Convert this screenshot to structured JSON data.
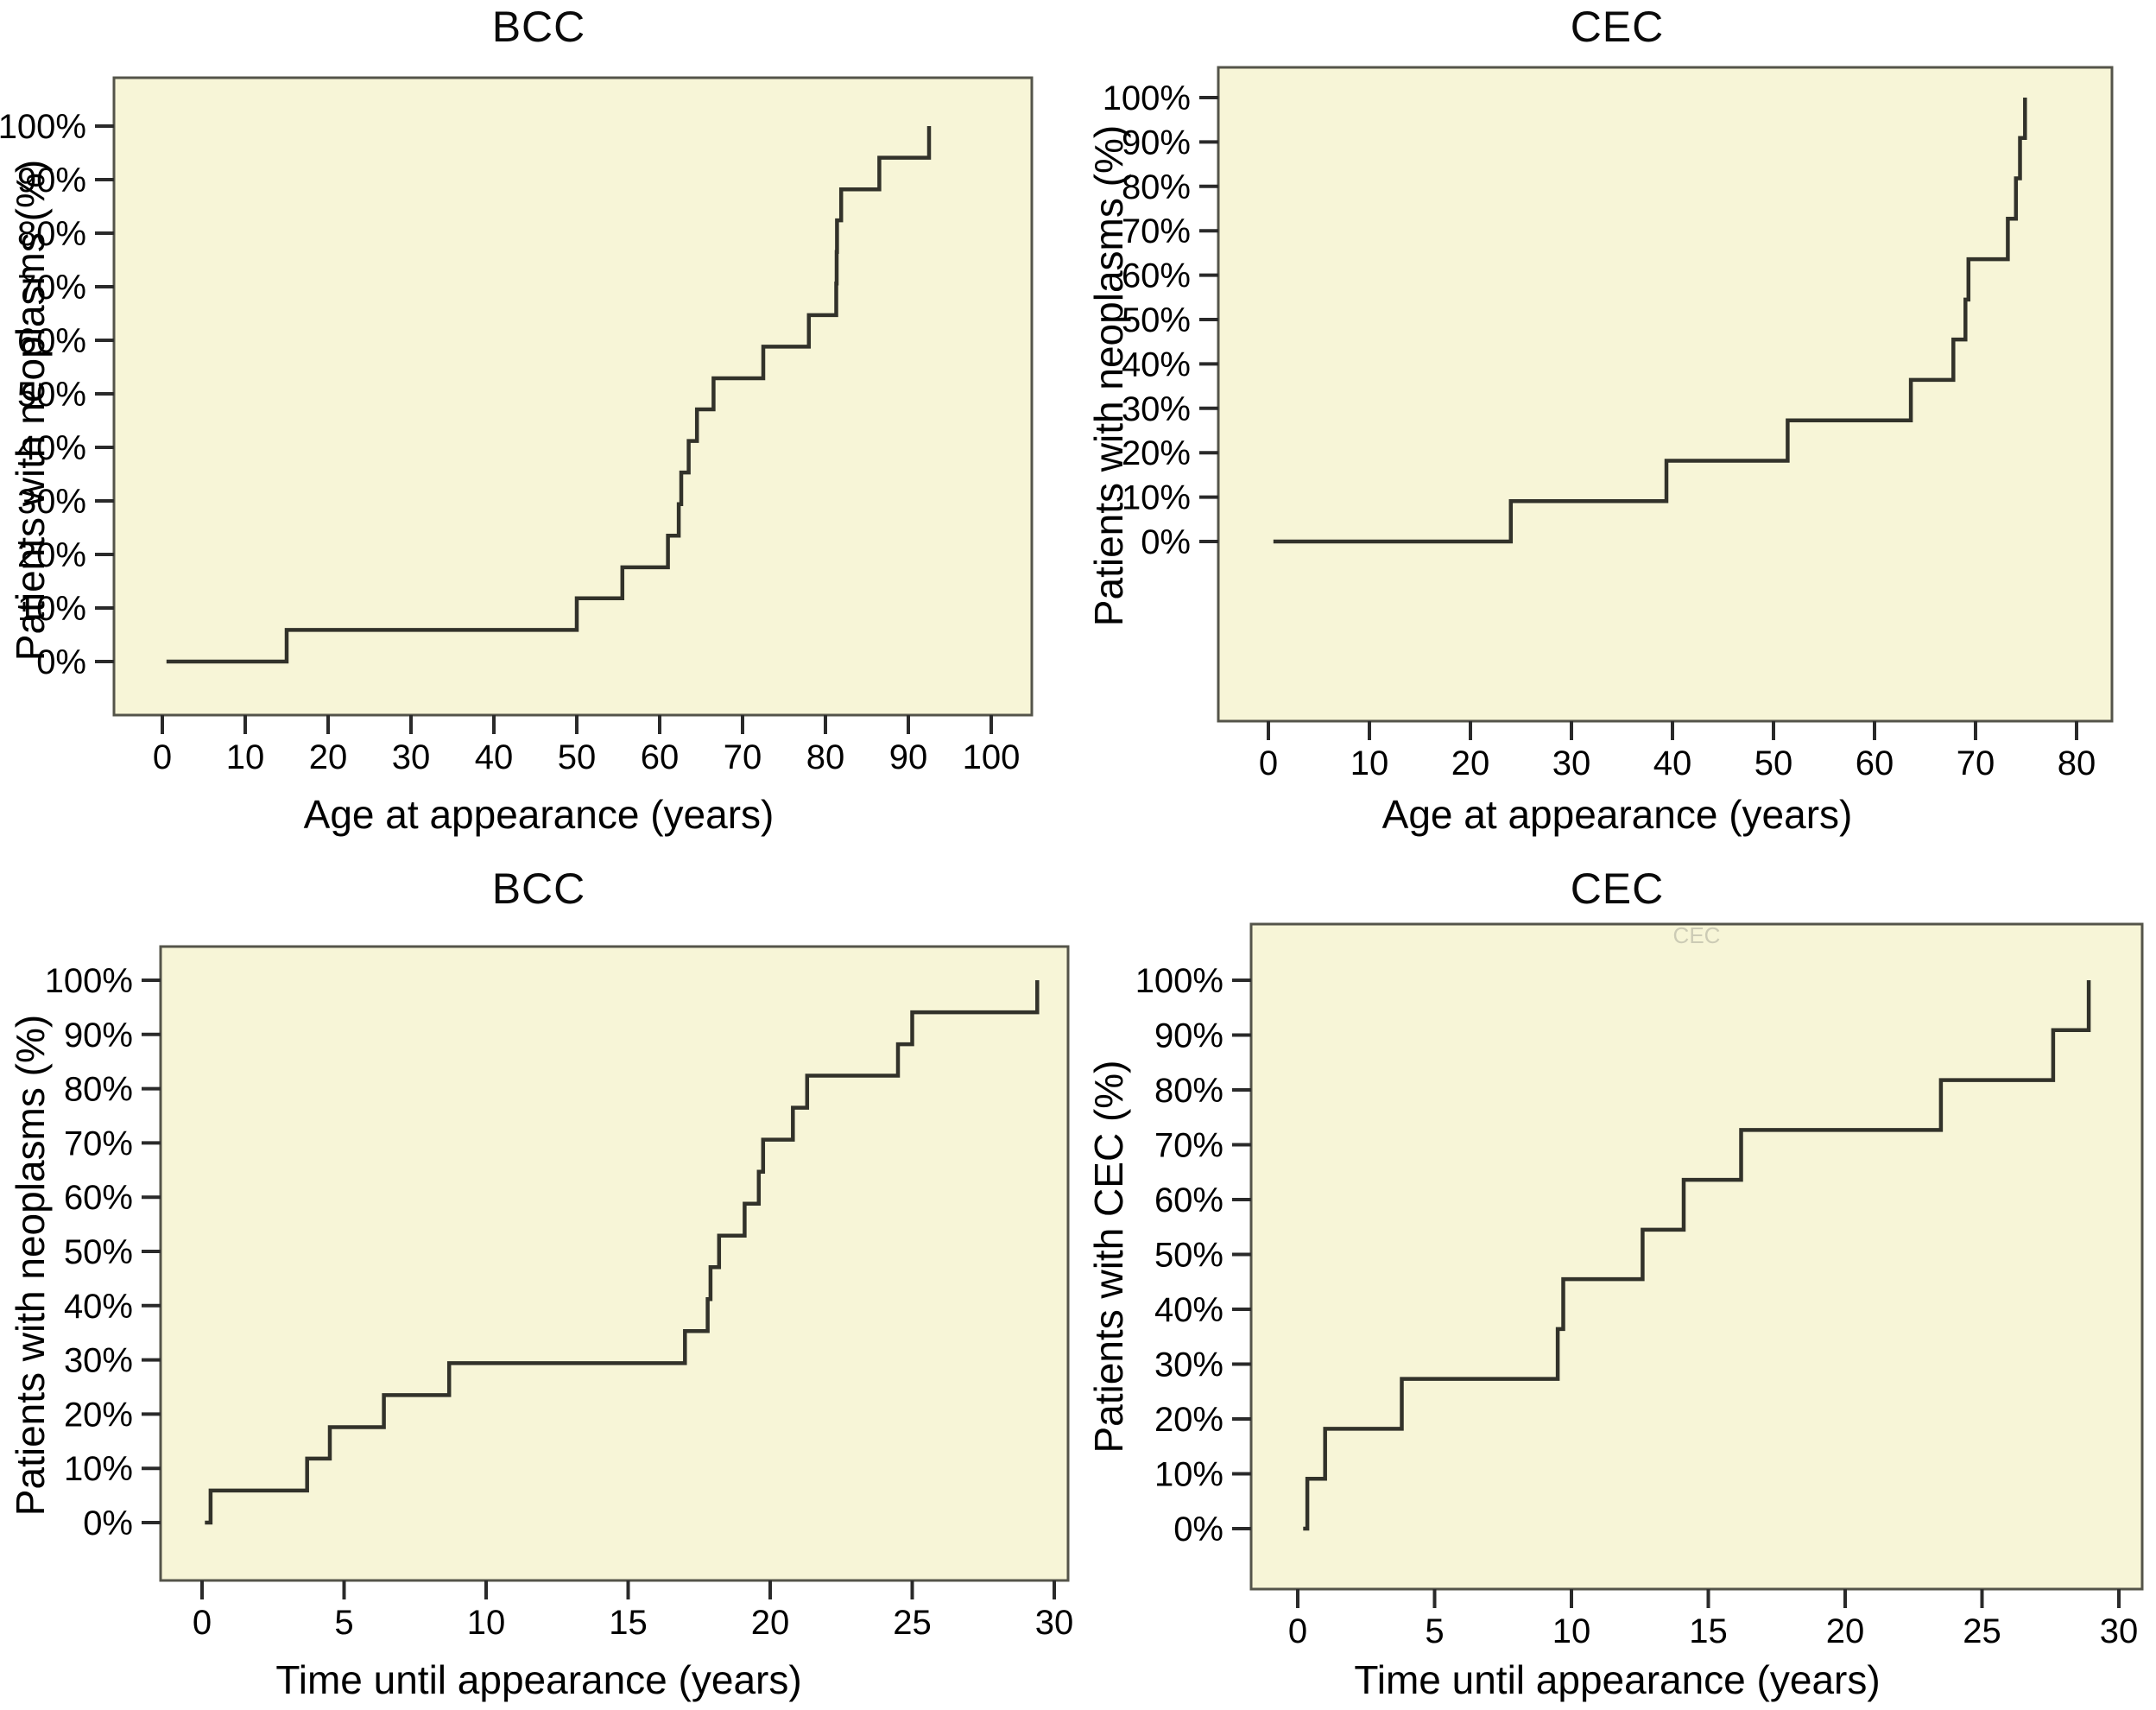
{
  "figure_title": "",
  "colors": {
    "plot_background": "#f7f5d7",
    "curve_line": "#32322a",
    "plot_border": "#54544a",
    "tick_mark": "#2a2a2a",
    "text": "#000000",
    "page_background": "#ffffff",
    "ghost_text_color": "#9a9a8e"
  },
  "chart_data": [
    {
      "id": "bcc-age",
      "type": "step",
      "title": "BCC",
      "xlabel": "Age at appearance (years)",
      "ylabel": "Patients with neoplasms (%)",
      "xlim": [
        0,
        100
      ],
      "ylim": [
        0,
        100
      ],
      "grid": false,
      "legend": null,
      "x_ticks": [
        0,
        10,
        20,
        30,
        40,
        50,
        60,
        70,
        80,
        90,
        100
      ],
      "y_ticks": [
        0,
        10,
        20,
        30,
        40,
        50,
        60,
        70,
        80,
        90,
        100
      ],
      "y_tick_suffix": "%",
      "n_events": 17,
      "start_x": 0.5,
      "steps": [
        [
          15,
          5.9
        ],
        [
          50,
          11.8
        ],
        [
          55.5,
          17.6
        ],
        [
          61,
          23.5
        ],
        [
          62.3,
          29.4
        ],
        [
          62.6,
          35.3
        ],
        [
          63.5,
          41.2
        ],
        [
          64.5,
          47.1
        ],
        [
          66.5,
          52.9
        ],
        [
          72.5,
          58.8
        ],
        [
          78,
          64.7
        ],
        [
          81.3,
          70.6
        ],
        [
          81.35,
          76.5
        ],
        [
          81.4,
          82.4
        ],
        [
          81.9,
          88.2
        ],
        [
          86.5,
          94.1
        ],
        [
          92.5,
          100
        ]
      ]
    },
    {
      "id": "cec-age",
      "type": "step",
      "title": "CEC",
      "xlabel": "Age at appearance (years)",
      "ylabel": "Patients with neoplasms (%)",
      "xlim": [
        0,
        80
      ],
      "ylim": [
        0,
        100
      ],
      "grid": false,
      "legend": null,
      "x_ticks": [
        0,
        10,
        20,
        30,
        40,
        50,
        60,
        70,
        80
      ],
      "y_ticks": [
        0,
        10,
        20,
        30,
        40,
        50,
        60,
        70,
        80,
        90,
        100
      ],
      "y_tick_suffix": "%",
      "n_events": 11,
      "start_x": 0.5,
      "steps": [
        [
          24,
          9.1
        ],
        [
          39.4,
          18.2
        ],
        [
          51.4,
          27.3
        ],
        [
          63.6,
          36.4
        ],
        [
          67.8,
          45.5
        ],
        [
          69,
          54.5
        ],
        [
          69.3,
          63.6
        ],
        [
          73.2,
          72.7
        ],
        [
          74,
          81.8
        ],
        [
          74.4,
          90.9
        ],
        [
          74.9,
          100
        ]
      ]
    },
    {
      "id": "bcc-time",
      "type": "step",
      "title": "BCC",
      "xlabel": "Time until appearance (years)",
      "ylabel": "Patients with neoplasms (%)",
      "xlim": [
        0,
        30
      ],
      "ylim": [
        0,
        100
      ],
      "grid": false,
      "legend": null,
      "x_ticks": [
        0,
        5,
        10,
        15,
        20,
        25,
        30
      ],
      "y_ticks": [
        0,
        10,
        20,
        30,
        40,
        50,
        60,
        70,
        80,
        90,
        100
      ],
      "y_tick_suffix": "%",
      "n_events": 17,
      "start_x": 0.1,
      "steps": [
        [
          0.3,
          5.9
        ],
        [
          3.7,
          11.8
        ],
        [
          4.5,
          17.6
        ],
        [
          6.4,
          23.5
        ],
        [
          8.7,
          29.4
        ],
        [
          17,
          35.3
        ],
        [
          17.8,
          41.2
        ],
        [
          17.9,
          47.1
        ],
        [
          18.2,
          52.9
        ],
        [
          19.1,
          58.8
        ],
        [
          19.6,
          64.7
        ],
        [
          19.75,
          70.6
        ],
        [
          20.8,
          76.5
        ],
        [
          21.3,
          82.4
        ],
        [
          24.5,
          88.2
        ],
        [
          25,
          94.1
        ],
        [
          29.4,
          100
        ]
      ]
    },
    {
      "id": "cec-time",
      "type": "step",
      "title": "CEC",
      "xlabel": "Time until appearance (years)",
      "ylabel": "Patients with CEC (%)",
      "xlim": [
        0,
        30
      ],
      "ylim": [
        0,
        100
      ],
      "grid": false,
      "legend": null,
      "x_ticks": [
        0,
        5,
        10,
        15,
        20,
        25,
        30
      ],
      "y_ticks": [
        0,
        10,
        20,
        30,
        40,
        50,
        60,
        70,
        80,
        90,
        100
      ],
      "y_tick_suffix": "%",
      "n_events": 11,
      "start_x": 0.2,
      "ghost_text": "CEC",
      "steps": [
        [
          0.35,
          9.1
        ],
        [
          1,
          18.2
        ],
        [
          3.8,
          27.3
        ],
        [
          9.5,
          36.4
        ],
        [
          9.7,
          45.5
        ],
        [
          12.6,
          54.5
        ],
        [
          14.1,
          63.6
        ],
        [
          16.2,
          72.7
        ],
        [
          23.5,
          81.8
        ],
        [
          27.6,
          90.9
        ],
        [
          28.9,
          100
        ]
      ]
    }
  ]
}
